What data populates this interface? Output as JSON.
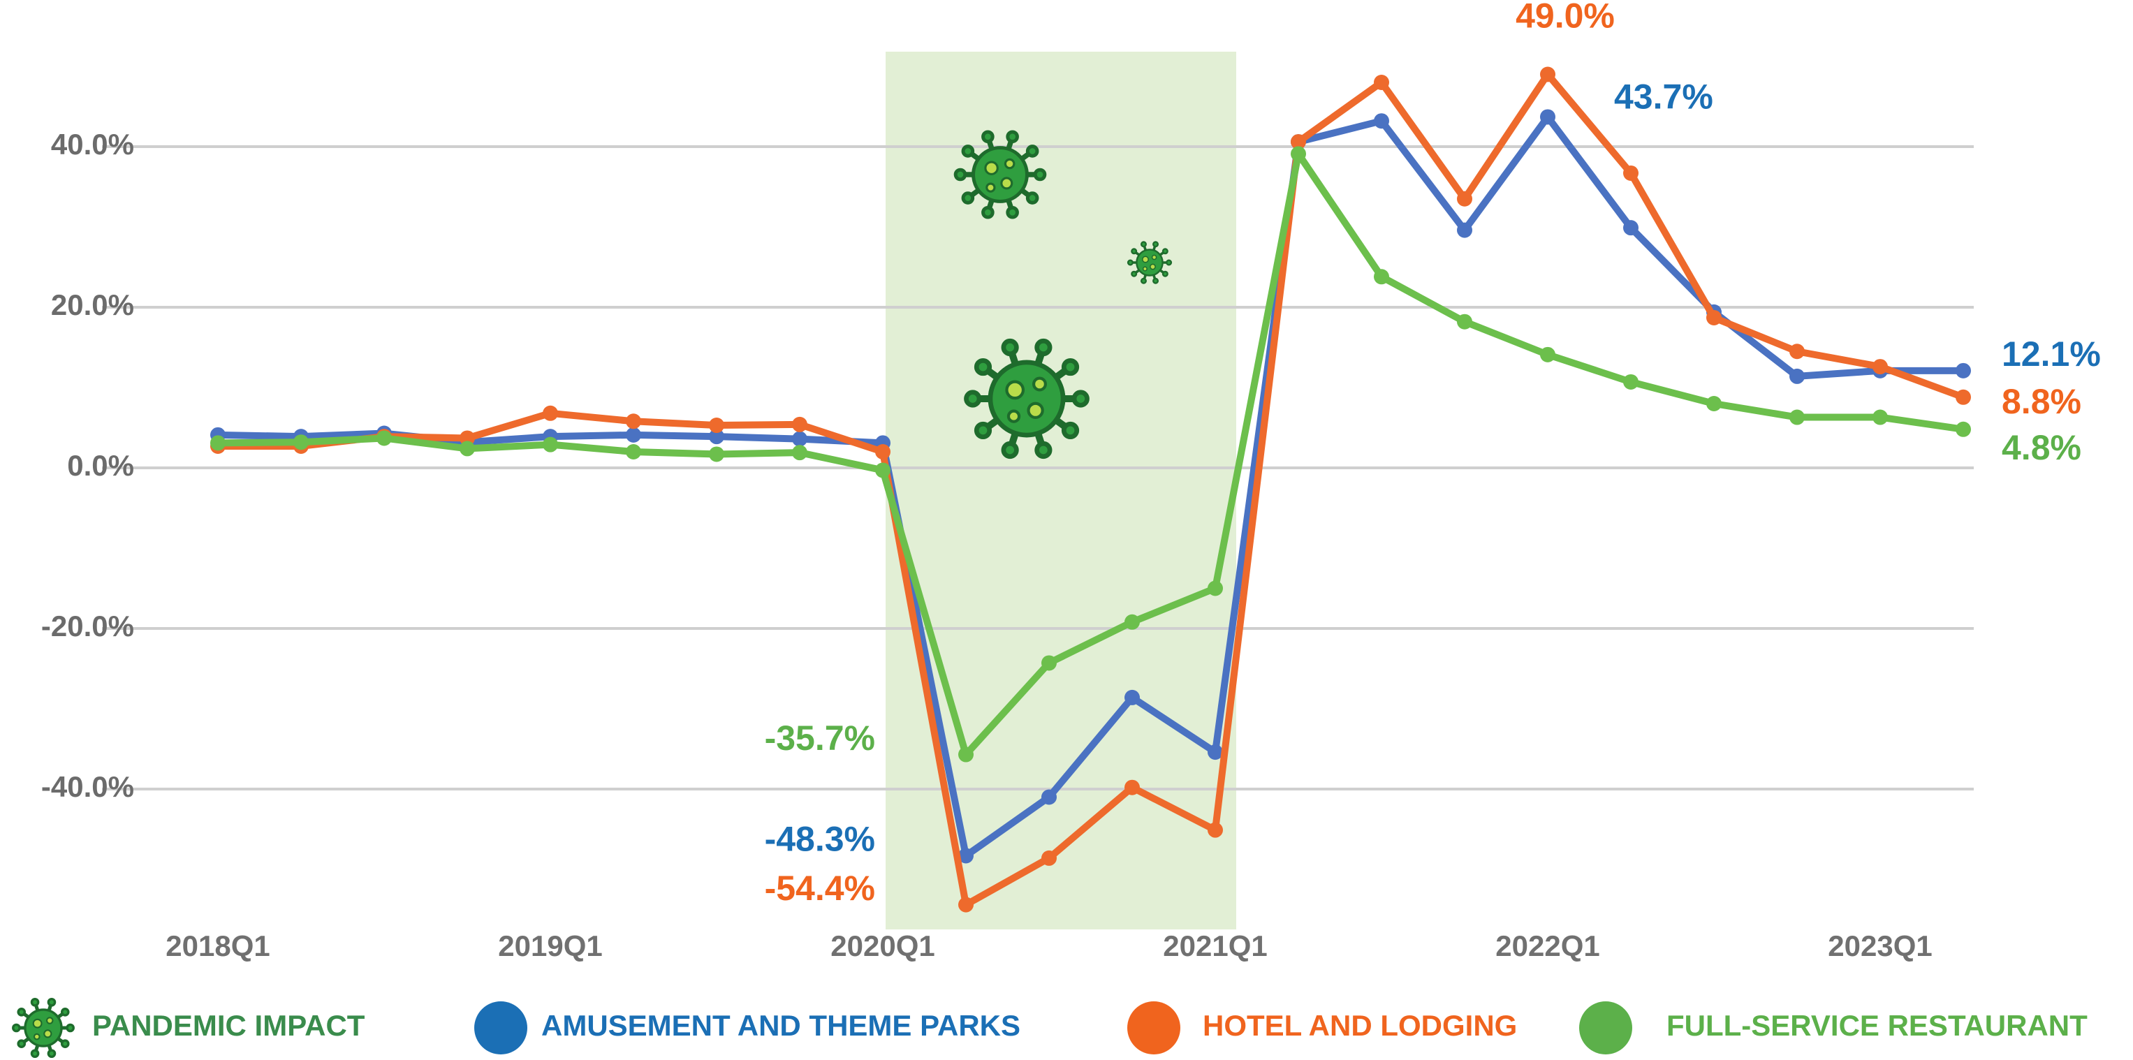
{
  "chart_data": {
    "type": "line",
    "categories": [
      "2018Q1",
      null,
      null,
      null,
      "2019Q1",
      null,
      null,
      null,
      "2020Q1",
      null,
      null,
      null,
      "2021Q1",
      null,
      null,
      null,
      "2022Q1",
      null,
      null,
      null,
      "2023Q1",
      null
    ],
    "ylim": [
      -58,
      52
    ],
    "yticks": [
      {
        "value": -40,
        "label": "-40.0%"
      },
      {
        "value": -20,
        "label": "-20.0%"
      },
      {
        "value": 0,
        "label": "0.0%"
      },
      {
        "value": 20,
        "label": "20.0%"
      },
      {
        "value": 40,
        "label": "40.0%"
      }
    ],
    "grid": true,
    "highlight": {
      "name": "PANDEMIC IMPACT",
      "color": "#e2efd5",
      "label_color": "#3a8c4c",
      "x_range": [
        "2020Q1",
        "2021Q1"
      ]
    },
    "series": [
      {
        "name": "AMUSEMENT AND THEME PARKS",
        "color": "#4a72c2",
        "label_color": "#1b6fb5",
        "values": [
          4.1,
          3.9,
          4.3,
          3.2,
          3.9,
          4.1,
          3.9,
          3.6,
          3.1,
          -48.3,
          -41.0,
          -28.6,
          -35.4,
          40.6,
          43.2,
          29.6,
          43.7,
          29.9,
          19.4,
          11.4,
          12.1,
          12.1
        ],
        "value_labels": [
          null,
          null,
          null,
          null,
          null,
          null,
          null,
          null,
          null,
          "-48.3%",
          null,
          null,
          null,
          null,
          null,
          null,
          "43.7%",
          null,
          null,
          null,
          null,
          "12.1%"
        ]
      },
      {
        "name": "HOTEL AND LODGING",
        "color": "#ee6a2c",
        "label_color": "#f0641e",
        "values": [
          2.7,
          2.7,
          3.9,
          3.7,
          6.8,
          5.8,
          5.3,
          5.4,
          2.0,
          -54.4,
          -48.6,
          -39.8,
          -45.1,
          40.6,
          48.0,
          33.5,
          49.0,
          36.7,
          18.7,
          14.5,
          12.6,
          8.8
        ],
        "value_labels": [
          null,
          null,
          null,
          null,
          null,
          null,
          null,
          null,
          null,
          "-54.4%",
          null,
          null,
          null,
          null,
          null,
          null,
          "49.0%",
          null,
          null,
          null,
          null,
          "8.8%"
        ]
      },
      {
        "name": "FULL-SERVICE RESTAURANT",
        "color": "#6cbf4c",
        "label_color": "#5cb04a",
        "values": [
          3.1,
          3.2,
          3.7,
          2.4,
          2.9,
          2.0,
          1.7,
          1.9,
          -0.3,
          -35.7,
          -24.3,
          -19.2,
          -15.0,
          39.1,
          23.8,
          18.2,
          14.1,
          10.7,
          8.0,
          6.3,
          6.3,
          4.8
        ],
        "value_labels": [
          null,
          null,
          null,
          null,
          null,
          null,
          null,
          null,
          null,
          "-35.7%",
          null,
          null,
          null,
          null,
          null,
          null,
          null,
          null,
          null,
          null,
          null,
          "4.8%"
        ]
      }
    ]
  }
}
